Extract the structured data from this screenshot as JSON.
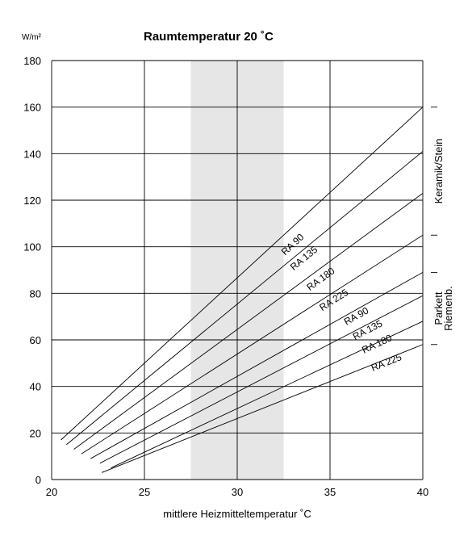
{
  "chart_data": {
    "type": "line",
    "title": "Raumtemperatur 20 ˚C",
    "ylabel": "W/m²",
    "xlabel": "mittlere Heizmitteltemperatur ˚C",
    "xlim": [
      20,
      40
    ],
    "ylim": [
      0,
      180
    ],
    "x_ticks": [
      20,
      25,
      30,
      35,
      40
    ],
    "y_ticks": [
      0,
      20,
      40,
      60,
      80,
      100,
      120,
      140,
      160,
      180
    ],
    "grid": true,
    "shaded_band": {
      "x_from": 27.5,
      "x_to": 32.5,
      "color": "#e6e6e6"
    },
    "series": [
      {
        "name": "RA 90",
        "group": "Keramik/Stein",
        "x": [
          20.5,
          40
        ],
        "y": [
          17,
          160
        ],
        "label_at": [
          33.1,
          100
        ]
      },
      {
        "name": "RA 135",
        "group": "Keramik/Stein",
        "x": [
          20.8,
          40
        ],
        "y": [
          15,
          141
        ],
        "label_at": [
          33.7,
          94
        ]
      },
      {
        "name": "RA 180",
        "group": "Keramik/Stein",
        "x": [
          21.2,
          40
        ],
        "y": [
          13,
          123
        ],
        "label_at": [
          34.6,
          85
        ]
      },
      {
        "name": "RA 225",
        "group": "Keramik/Stein",
        "x": [
          21.6,
          40
        ],
        "y": [
          11,
          105
        ],
        "label_at": [
          35.3,
          76
        ]
      },
      {
        "name": "RA 90",
        "group": "Parkett Riemenb.",
        "x": [
          22.1,
          40
        ],
        "y": [
          9,
          89
        ],
        "label_at": [
          36.5,
          69
        ]
      },
      {
        "name": "RA 135",
        "group": "Parkett Riemenb.",
        "x": [
          22.6,
          40
        ],
        "y": [
          7,
          79
        ],
        "label_at": [
          37.1,
          63
        ]
      },
      {
        "name": "RA 180",
        "group": "Parkett Riemenb.",
        "x": [
          23.2,
          40
        ],
        "y": [
          5,
          68
        ],
        "label_at": [
          37.6,
          57
        ]
      },
      {
        "name": "RA 225",
        "group": "Parkett Riemenb.",
        "x": [
          22.7,
          40
        ],
        "y": [
          3,
          58
        ],
        "label_at": [
          38.1,
          49
        ]
      }
    ],
    "right_brackets": [
      {
        "label": "Keramik/Stein",
        "y_from": 160,
        "y_to": 105
      },
      {
        "label": "Parkett\nRiemenb.",
        "y_from": 89,
        "y_to": 58
      }
    ],
    "line_color": "#000000",
    "grid_color": "#000000"
  }
}
